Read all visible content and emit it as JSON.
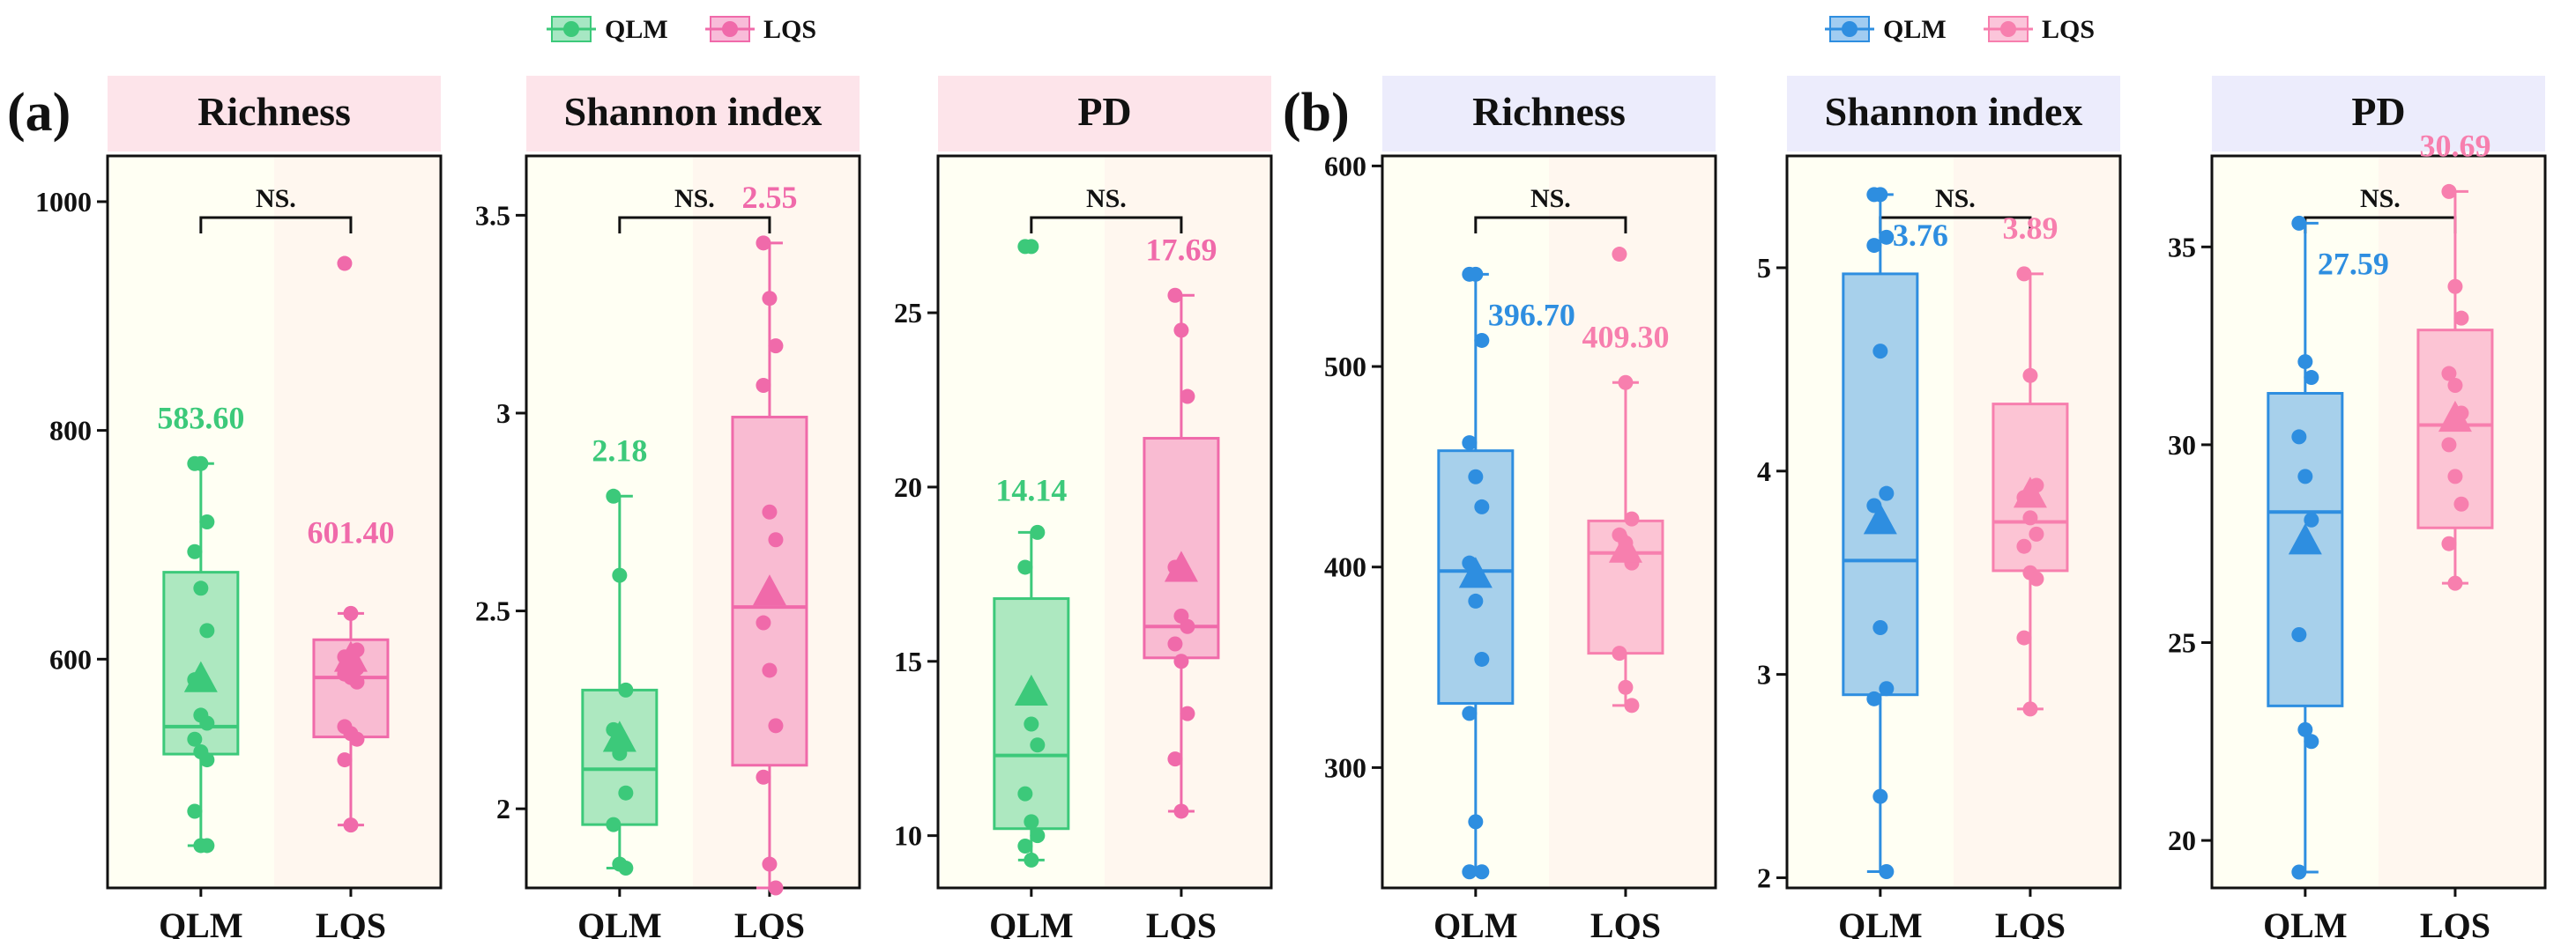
{
  "chart_data": {
    "type": "boxplot",
    "figure_labels": [
      "(a)",
      "(b)"
    ],
    "significance_label": "NS.",
    "groups": [
      "QLM",
      "LQS"
    ],
    "legends": [
      {
        "entries": [
          "QLM",
          "LQS"
        ],
        "colors": [
          "#3cc97a",
          "#f06aaa"
        ]
      },
      {
        "entries": [
          "QLM",
          "LQS"
        ],
        "colors": [
          "#2e8ee0",
          "#f77fae"
        ]
      }
    ],
    "panels": [
      {
        "title": "Richness",
        "ylim": [
          400,
          1040
        ],
        "yticks": [
          600,
          800,
          1000
        ],
        "colors": [
          "#3cc97a",
          "#f06aaa"
        ],
        "header_color": "#fde4ea",
        "bg": [
          "#fffff3",
          "#fff7ef"
        ],
        "series": [
          {
            "name": "QLM",
            "mean": 583.6,
            "mean_label": "583.60",
            "q1": 517,
            "median": 541,
            "q3": 676,
            "whisker_low": 437,
            "whisker_high": 771,
            "points": [
              771,
              771,
              720,
              694,
              662,
              625,
              582,
              551,
              544,
              530,
              519,
              512,
              467,
              437,
              437
            ]
          },
          {
            "name": "LQS",
            "mean": 601.4,
            "mean_label": "601.40",
            "q1": 532,
            "median": 584,
            "q3": 617,
            "whisker_low": 455,
            "whisker_high": 640,
            "points": [
              946,
              640,
              608,
              602,
              595,
              592,
              587,
              584,
              580,
              541,
              535,
              530,
              512,
              455
            ]
          }
        ]
      },
      {
        "title": "Shannon index",
        "ylim": [
          1.8,
          3.65
        ],
        "yticks": [
          2.0,
          2.5,
          3.0,
          3.5
        ],
        "colors": [
          "#3cc97a",
          "#f06aaa"
        ],
        "header_color": "#fde4ea",
        "bg": [
          "#fffff3",
          "#fff7ef"
        ],
        "series": [
          {
            "name": "QLM",
            "mean": 2.18,
            "mean_label": "2.18",
            "q1": 1.96,
            "median": 2.1,
            "q3": 2.3,
            "whisker_low": 1.85,
            "whisker_high": 2.79,
            "points": [
              2.79,
              2.59,
              2.3,
              2.2,
              2.14,
              2.04,
              1.96,
              1.86,
              1.85
            ]
          },
          {
            "name": "LQS",
            "mean": 2.55,
            "mean_label": "2.55",
            "q1": 2.11,
            "median": 2.51,
            "q3": 2.99,
            "whisker_low": 1.8,
            "whisker_high": 3.43,
            "points": [
              3.43,
              3.29,
              3.17,
              3.07,
              2.75,
              2.68,
              2.47,
              2.35,
              2.21,
              2.08,
              1.86,
              1.8
            ]
          }
        ]
      },
      {
        "title": "PD",
        "ylim": [
          8.5,
          29.5
        ],
        "yticks": [
          10,
          15,
          20,
          25
        ],
        "colors": [
          "#3cc97a",
          "#f06aaa"
        ],
        "header_color": "#fde4ea",
        "bg": [
          "#fffff3",
          "#fff7ef"
        ],
        "series": [
          {
            "name": "QLM",
            "mean": 14.14,
            "mean_label": "14.14",
            "q1": 10.2,
            "median": 12.3,
            "q3": 16.8,
            "whisker_low": 9.3,
            "whisker_high": 18.7,
            "points": [
              26.9,
              26.9,
              18.7,
              17.7,
              13.2,
              12.6,
              11.2,
              10.4,
              10.0,
              9.7,
              9.3
            ]
          },
          {
            "name": "LQS",
            "mean": 17.69,
            "mean_label": "17.69",
            "q1": 15.1,
            "median": 16.0,
            "q3": 21.4,
            "whisker_low": 10.7,
            "whisker_high": 25.5,
            "points": [
              25.5,
              24.5,
              22.6,
              17.7,
              16.3,
              16.0,
              15.5,
              15.0,
              13.5,
              12.2,
              10.7
            ]
          }
        ]
      },
      {
        "title": "Richness",
        "ylim": [
          240,
          605
        ],
        "yticks": [
          300,
          400,
          500,
          600
        ],
        "colors": [
          "#2e8ee0",
          "#f77fae"
        ],
        "header_color": "#ececfc",
        "bg": [
          "#fffff3",
          "#fff7ef"
        ],
        "series": [
          {
            "name": "QLM",
            "mean": 396.7,
            "mean_label": "396.70",
            "q1": 332,
            "median": 398,
            "q3": 458,
            "whisker_low": 248,
            "whisker_high": 546,
            "points": [
              546,
              546,
              513,
              462,
              445,
              430,
              402,
              383,
              354,
              327,
              273,
              248,
              248
            ]
          },
          {
            "name": "LQS",
            "mean": 409.3,
            "mean_label": "409.30",
            "q1": 357,
            "median": 407,
            "q3": 423,
            "whisker_low": 331,
            "whisker_high": 492,
            "points": [
              556,
              492,
              424,
              416,
              412,
              402,
              357,
              340,
              331
            ]
          }
        ]
      },
      {
        "title": "Shannon index",
        "ylim": [
          1.95,
          5.55
        ],
        "yticks": [
          2,
          3,
          4,
          5
        ],
        "colors": [
          "#2e8ee0",
          "#f77fae"
        ],
        "header_color": "#ececfc",
        "bg": [
          "#fffff3",
          "#fff7ef"
        ],
        "series": [
          {
            "name": "QLM",
            "mean": 3.76,
            "mean_label": "3.76",
            "q1": 2.9,
            "median": 3.56,
            "q3": 4.97,
            "whisker_low": 2.03,
            "whisker_high": 5.36,
            "points": [
              5.36,
              5.36,
              5.15,
              5.11,
              4.59,
              3.89,
              3.83,
              3.23,
              2.93,
              2.88,
              2.4,
              2.03
            ]
          },
          {
            "name": "LQS",
            "mean": 3.89,
            "mean_label": "3.89",
            "q1": 3.51,
            "median": 3.75,
            "q3": 4.33,
            "whisker_low": 2.83,
            "whisker_high": 4.97,
            "points": [
              4.97,
              4.47,
              3.93,
              3.87,
              3.77,
              3.69,
              3.63,
              3.5,
              3.47,
              3.18,
              2.83
            ]
          }
        ]
      },
      {
        "title": "PD",
        "ylim": [
          18.8,
          37.3
        ],
        "yticks": [
          20,
          25,
          30,
          35
        ],
        "colors": [
          "#2e8ee0",
          "#f77fae"
        ],
        "header_color": "#ececfc",
        "bg": [
          "#fffff3",
          "#fff7ef"
        ],
        "series": [
          {
            "name": "QLM",
            "mean": 27.59,
            "mean_label": "27.59",
            "q1": 23.4,
            "median": 28.3,
            "q3": 31.3,
            "whisker_low": 19.2,
            "whisker_high": 35.6,
            "points": [
              35.6,
              32.1,
              31.7,
              30.2,
              29.2,
              28.1,
              25.2,
              22.8,
              22.5,
              19.2
            ]
          },
          {
            "name": "LQS",
            "mean": 30.69,
            "mean_label": "30.69",
            "q1": 27.9,
            "median": 30.5,
            "q3": 32.9,
            "whisker_low": 26.5,
            "whisker_high": 36.4,
            "points": [
              36.4,
              34.0,
              33.2,
              31.8,
              31.5,
              30.8,
              30.0,
              29.2,
              28.5,
              27.5,
              26.5
            ]
          }
        ]
      }
    ]
  }
}
